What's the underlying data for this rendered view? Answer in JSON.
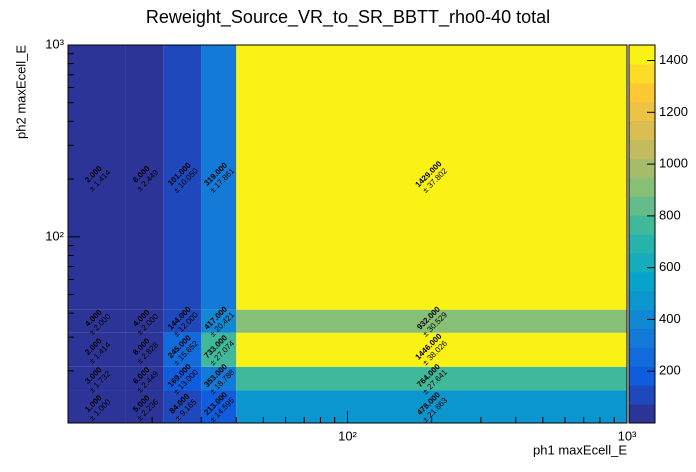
{
  "chart_data": {
    "type": "heatmap",
    "title": "Reweight_Source_VR_to_SR_BBTT_rho0-40 total",
    "xlabel": "ph1 maxEcell_E",
    "ylabel": "ph2 maxEcell_E",
    "xlog": true,
    "ylog": true,
    "xlim": [
      10,
      1000
    ],
    "ylim": [
      10.7,
      1000
    ],
    "xticks": [
      {
        "value": 100,
        "label": "10²"
      },
      {
        "value": 1000,
        "label": "10³"
      }
    ],
    "yticks": [
      {
        "value": 100,
        "label": "10²"
      },
      {
        "value": 1000,
        "label": "10³"
      }
    ],
    "x_edges": [
      10,
      16,
      22,
      30,
      40,
      1000
    ],
    "y_edges": [
      10.7,
      15.8,
      21,
      31.6,
      41.7,
      1000
    ],
    "values": [
      [
        1,
        5,
        84,
        213,
        478
      ],
      [
        3,
        6,
        169,
        353,
        764
      ],
      [
        2,
        8,
        245,
        733,
        1446
      ],
      [
        4,
        4,
        144,
        417,
        932
      ],
      [
        2,
        6,
        101,
        319,
        1429
      ]
    ],
    "value_labels": [
      [
        "1.000",
        "5.000",
        "84.000",
        "213.000",
        "478.000"
      ],
      [
        "3.000",
        "6.000",
        "169.000",
        "353.000",
        "764.000"
      ],
      [
        "2.000",
        "8.000",
        "245.000",
        "733.000",
        "1446.000"
      ],
      [
        "4.000",
        "4.000",
        "144.000",
        "417.000",
        "932.000"
      ],
      [
        "2.000",
        "6.000",
        "101.000",
        "319.000",
        "1429.000"
      ]
    ],
    "errors": [
      [
        1.0,
        2.236,
        9.165,
        14.595,
        21.863
      ],
      [
        1.732,
        2.449,
        13.0,
        18.788,
        27.641
      ],
      [
        1.414,
        2.828,
        15.652,
        27.074,
        38.026
      ],
      [
        2.0,
        2.0,
        12.0,
        20.421,
        30.529
      ],
      [
        1.414,
        2.449,
        10.05,
        17.861,
        37.802
      ]
    ],
    "error_labels": [
      [
        "± 1.000",
        "± 2.236",
        "± 9.165",
        "± 14.595",
        "± 21.863"
      ],
      [
        "± 1.732",
        "± 2.449",
        "± 13.000",
        "± 18.788",
        "± 27.641"
      ],
      [
        "± 1.414",
        "± 2.828",
        "± 15.652",
        "± 27.074",
        "± 38.026"
      ],
      [
        "± 2.000",
        "± 2.000",
        "± 12.000",
        "± 20.421",
        "± 30.529"
      ],
      [
        "± 1.414",
        "± 2.449",
        "± 10.050",
        "± 17.861",
        "± 37.802"
      ]
    ],
    "zlim": [
      0,
      1460
    ],
    "zticks": [
      200,
      400,
      600,
      800,
      1000,
      1200,
      1400
    ],
    "palette": [
      "#352a87",
      "#0f5cdd",
      "#1481d6",
      "#06a4ca",
      "#2eb7a4",
      "#87bf77",
      "#d1bb59",
      "#fec832",
      "#f9fb0e"
    ]
  }
}
